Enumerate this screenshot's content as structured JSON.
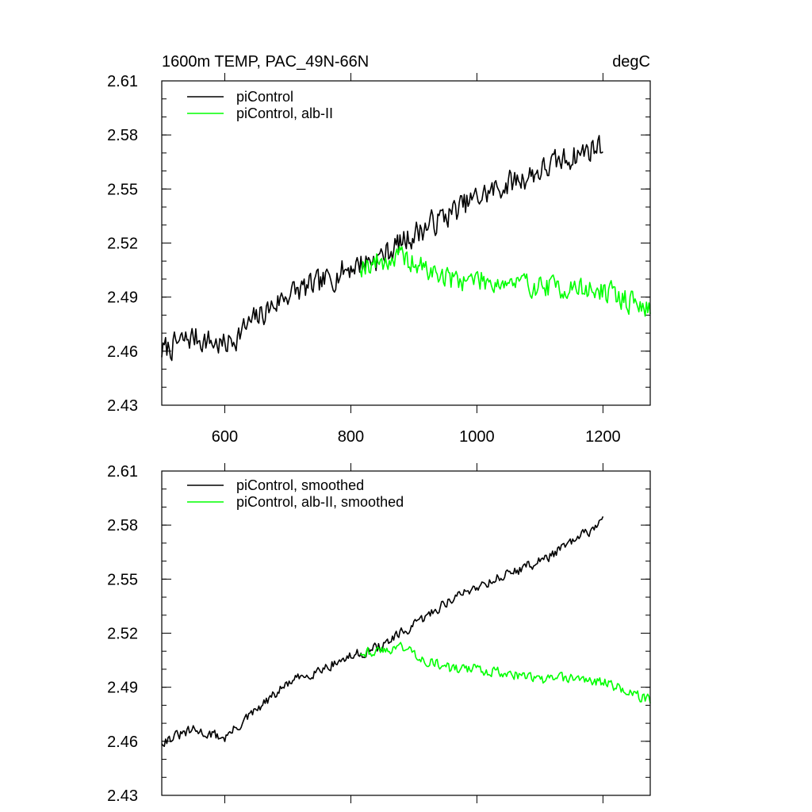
{
  "colors": {
    "series_black": "#000000",
    "series_green": "#00ff00"
  },
  "chart_data": [
    {
      "type": "line",
      "title": "1600m TEMP, PAC_49N-66N",
      "units": "degC",
      "xlim": [
        500,
        1275
      ],
      "ylim": [
        2.43,
        2.61
      ],
      "xticks": [
        600,
        800,
        1000,
        1200
      ],
      "xtick_labels": [
        "600",
        "800",
        "1000",
        "1200"
      ],
      "yticks": [
        2.43,
        2.46,
        2.49,
        2.52,
        2.55,
        2.58,
        2.61
      ],
      "ytick_labels": [
        "2.43",
        "2.46",
        "2.49",
        "2.52",
        "2.55",
        "2.58",
        "2.61"
      ],
      "legend": [
        "piControl",
        "piControl, alb-II"
      ],
      "series": [
        {
          "name": "piControl",
          "color": "#000000",
          "x_start": 500,
          "x_end": 1200,
          "anchors": [
            [
              500,
              2.46
            ],
            [
              550,
              2.468
            ],
            [
              600,
              2.463
            ],
            [
              650,
              2.478
            ],
            [
              700,
              2.492
            ],
            [
              750,
              2.497
            ],
            [
              800,
              2.507
            ],
            [
              850,
              2.513
            ],
            [
              900,
              2.525
            ],
            [
              950,
              2.535
            ],
            [
              1000,
              2.545
            ],
            [
              1050,
              2.553
            ],
            [
              1100,
              2.56
            ],
            [
              1150,
              2.568
            ],
            [
              1200,
              2.575
            ]
          ],
          "noise": 0.01,
          "seed": 7
        },
        {
          "name": "piControl, alb-II",
          "color": "#00ff00",
          "x_start": 815,
          "x_end": 1275,
          "anchors": [
            [
              815,
              2.508
            ],
            [
              850,
              2.51
            ],
            [
              880,
              2.512
            ],
            [
              920,
              2.505
            ],
            [
              960,
              2.5
            ],
            [
              1000,
              2.5
            ],
            [
              1050,
              2.498
            ],
            [
              1100,
              2.496
            ],
            [
              1150,
              2.495
            ],
            [
              1200,
              2.493
            ],
            [
              1250,
              2.487
            ],
            [
              1275,
              2.482
            ]
          ],
          "noise": 0.009,
          "seed": 19
        }
      ]
    },
    {
      "type": "line",
      "title": "",
      "xlim": [
        500,
        1275
      ],
      "ylim": [
        2.43,
        2.61
      ],
      "xticks": [
        600,
        800,
        1000,
        1200
      ],
      "xtick_labels": [],
      "yticks": [
        2.43,
        2.46,
        2.49,
        2.52,
        2.55,
        2.58,
        2.61
      ],
      "ytick_labels": [
        "2.43",
        "2.46",
        "2.49",
        "2.52",
        "2.55",
        "2.58",
        "2.61"
      ],
      "legend": [
        "piControl, smoothed",
        "piControl, alb-II, smoothed"
      ],
      "series": [
        {
          "name": "piControl, smoothed",
          "color": "#000000",
          "x_start": 500,
          "x_end": 1200,
          "anchors": [
            [
              500,
              2.46
            ],
            [
              550,
              2.466
            ],
            [
              600,
              2.462
            ],
            [
              650,
              2.477
            ],
            [
              700,
              2.492
            ],
            [
              750,
              2.5
            ],
            [
              800,
              2.507
            ],
            [
              850,
              2.513
            ],
            [
              900,
              2.524
            ],
            [
              950,
              2.537
            ],
            [
              1000,
              2.546
            ],
            [
              1050,
              2.553
            ],
            [
              1100,
              2.56
            ],
            [
              1150,
              2.57
            ],
            [
              1200,
              2.582
            ]
          ],
          "noise": 0.004,
          "seed": 31
        },
        {
          "name": "piControl, alb-II, smoothed",
          "color": "#00ff00",
          "x_start": 815,
          "x_end": 1275,
          "anchors": [
            [
              815,
              2.51
            ],
            [
              850,
              2.51
            ],
            [
              880,
              2.513
            ],
            [
              920,
              2.505
            ],
            [
              960,
              2.5
            ],
            [
              1000,
              2.5
            ],
            [
              1050,
              2.498
            ],
            [
              1100,
              2.494
            ],
            [
              1150,
              2.495
            ],
            [
              1200,
              2.493
            ],
            [
              1250,
              2.486
            ],
            [
              1275,
              2.483
            ]
          ],
          "noise": 0.004,
          "seed": 43
        }
      ]
    }
  ]
}
